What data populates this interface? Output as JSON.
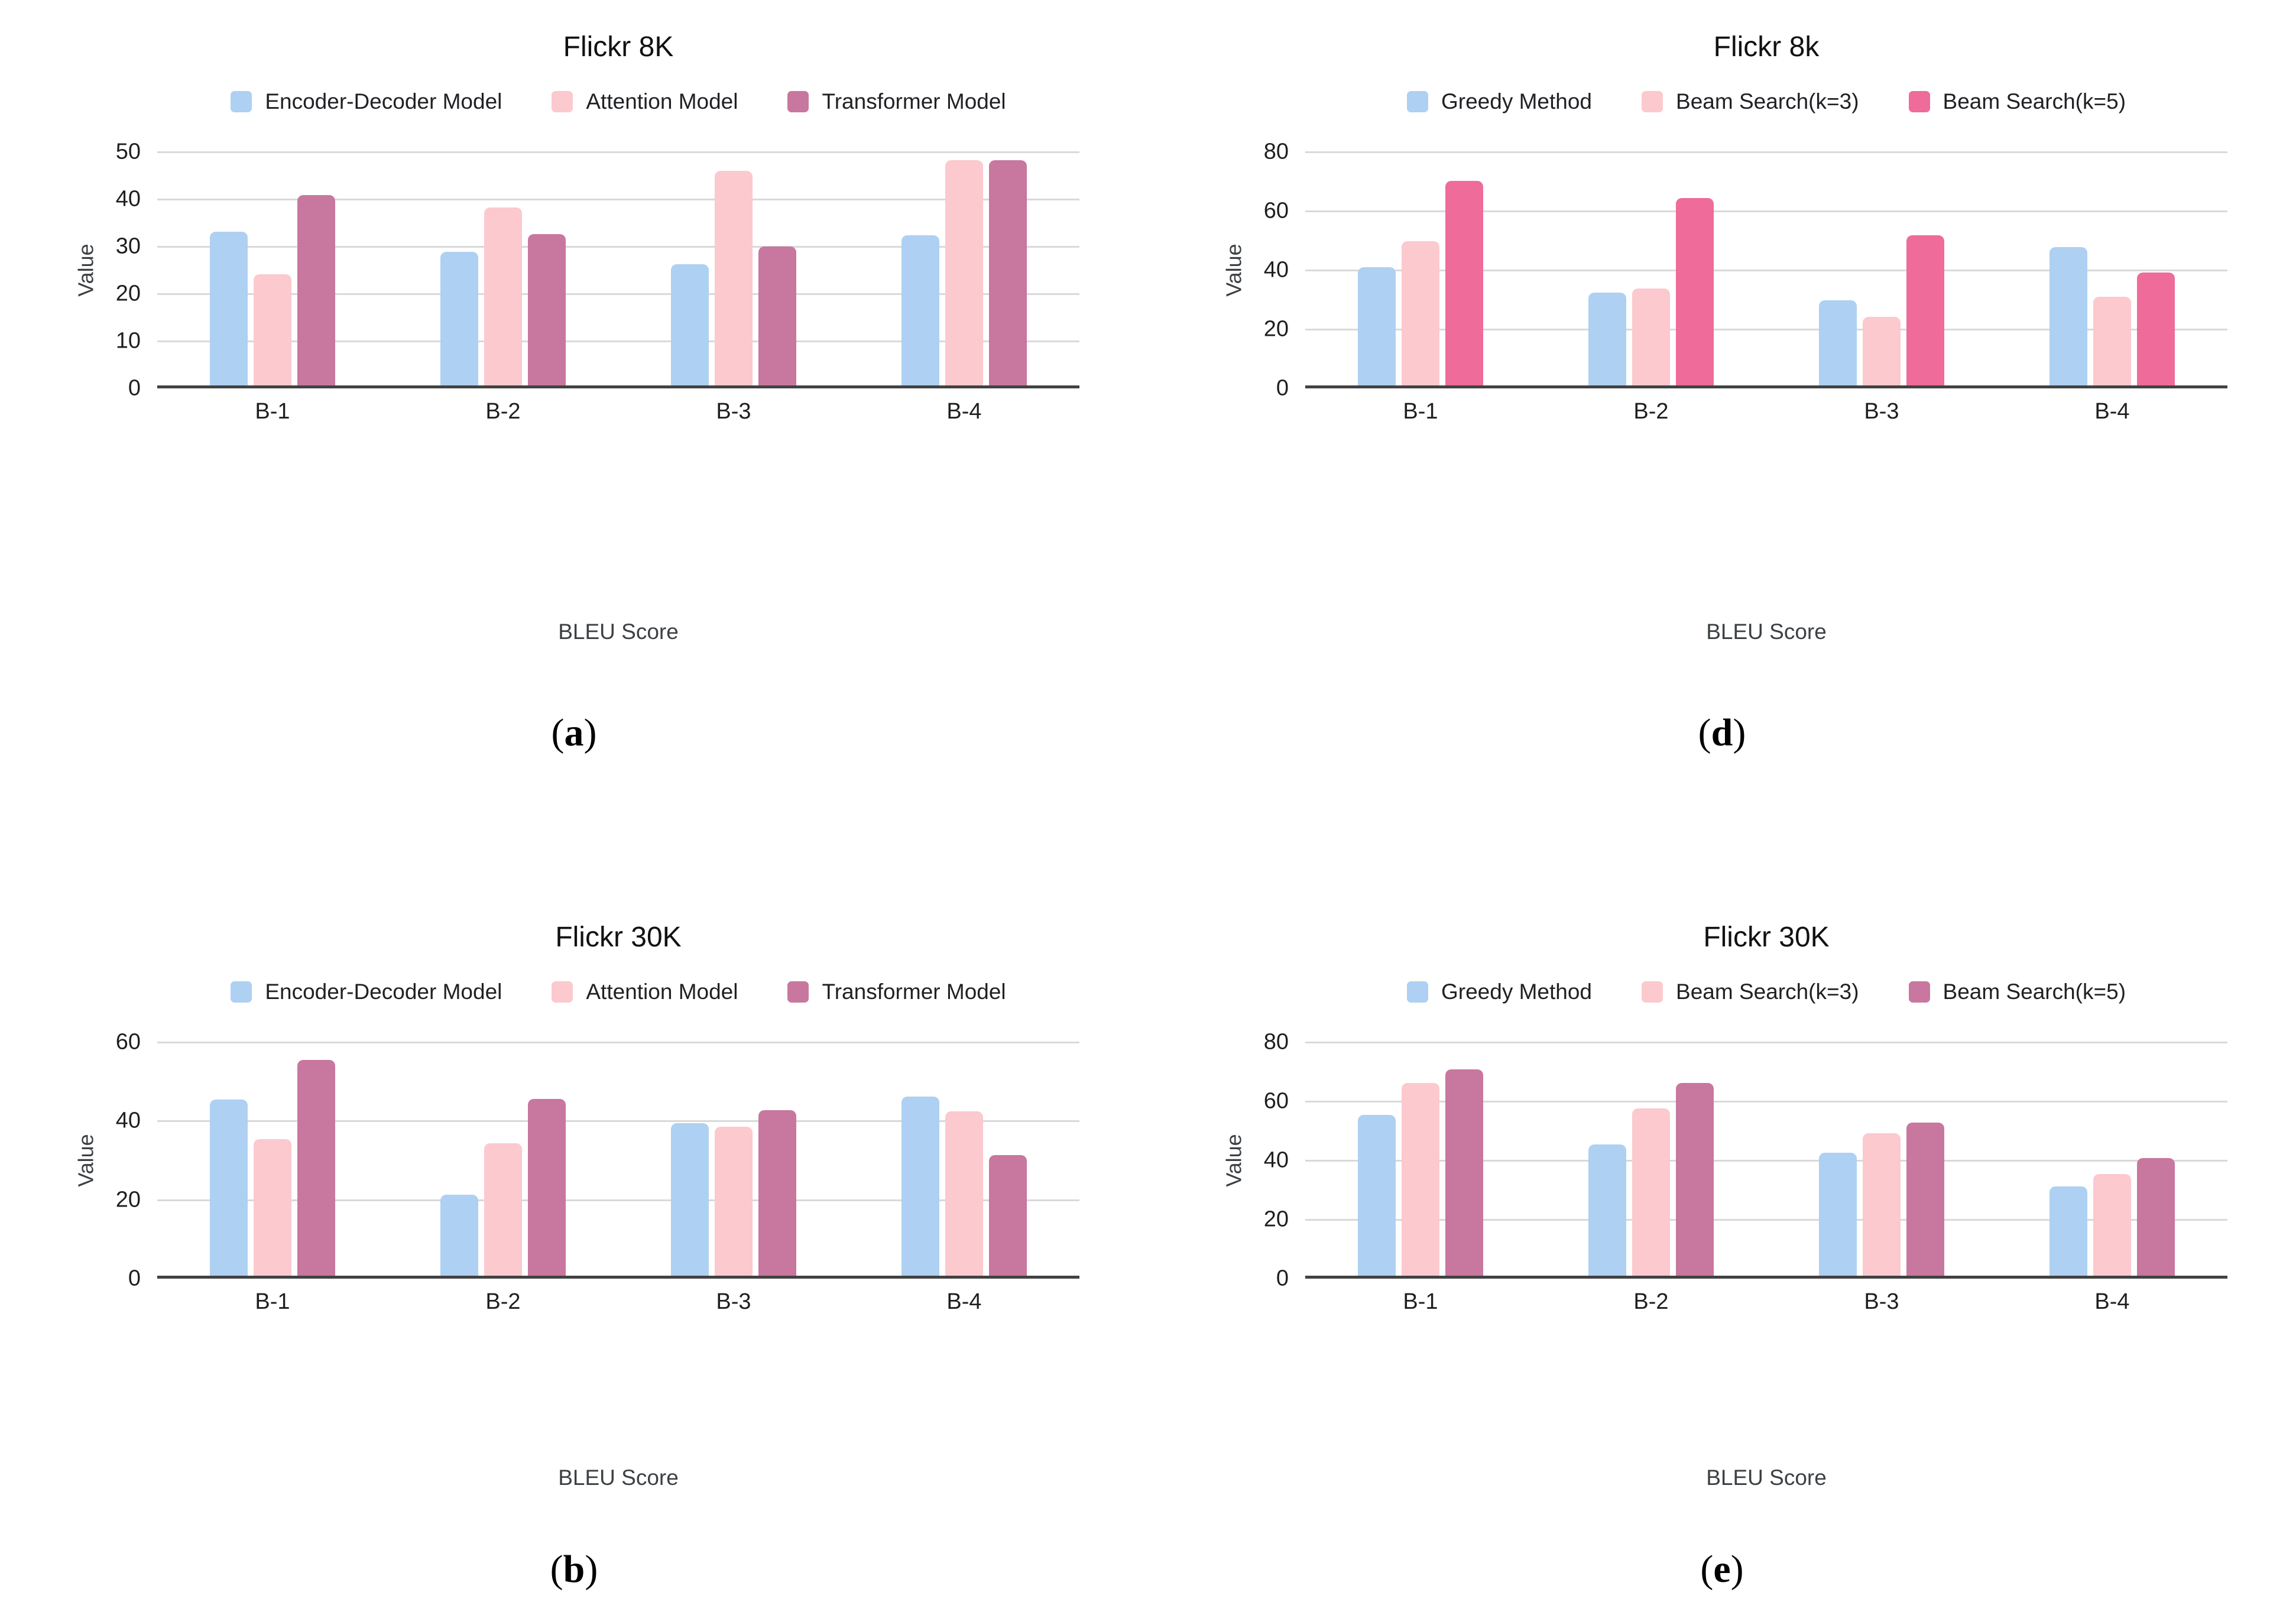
{
  "page": {
    "background": "#ffffff"
  },
  "chart_data": [
    {
      "type": "bar",
      "panel": "a",
      "caption": "(a)",
      "title": "Flickr 8K",
      "xlabel": "BLEU Score",
      "ylabel": "Value",
      "categories": [
        "B-1",
        "B-2",
        "B-3",
        "B-4"
      ],
      "y_ticks": [
        0,
        10,
        20,
        30,
        40,
        50
      ],
      "ylim": [
        0,
        50
      ],
      "grid": true,
      "legend_position": "top",
      "series": [
        {
          "name": "Encoder-Decoder Model",
          "color": "#aed0f2",
          "values": [
            33.1,
            28.9,
            26.3,
            32.4
          ]
        },
        {
          "name": "Attention Model",
          "color": "#fbc9ce",
          "values": [
            24.1,
            38.3,
            46.0,
            48.3
          ]
        },
        {
          "name": "Transformer Model",
          "color": "#c8779e",
          "values": [
            40.9,
            32.6,
            30.0,
            48.2
          ]
        }
      ]
    },
    {
      "type": "bar",
      "panel": "d",
      "caption": "(d)",
      "title": "Flickr 8k",
      "xlabel": "BLEU Score",
      "ylabel": "Value",
      "categories": [
        "B-1",
        "B-2",
        "B-3",
        "B-4"
      ],
      "y_ticks": [
        0,
        20,
        40,
        60,
        80
      ],
      "ylim": [
        0,
        80
      ],
      "grid": true,
      "legend_position": "top",
      "series": [
        {
          "name": "Greedy Method",
          "color": "#aed0f2",
          "values": [
            41.0,
            32.4,
            29.8,
            47.9
          ]
        },
        {
          "name": "Beam Search(k=3)",
          "color": "#fbc9ce",
          "values": [
            49.8,
            33.8,
            24.3,
            31.1
          ]
        },
        {
          "name": "Beam Search(k=5)",
          "color": "#ee6b9a",
          "values": [
            70.3,
            64.4,
            51.8,
            39.2
          ]
        }
      ]
    },
    {
      "type": "bar",
      "panel": "b",
      "caption": "(b)",
      "title": "Flickr 30K",
      "xlabel": "BLEU Score",
      "ylabel": "Value",
      "categories": [
        "B-1",
        "B-2",
        "B-3",
        "B-4"
      ],
      "y_ticks": [
        0,
        20,
        40,
        60
      ],
      "ylim": [
        0,
        60
      ],
      "grid": true,
      "legend_position": "top",
      "series": [
        {
          "name": "Encoder-Decoder Model",
          "color": "#aed0f2",
          "values": [
            45.4,
            21.3,
            39.4,
            46.2
          ]
        },
        {
          "name": "Attention Model",
          "color": "#fbc9ce",
          "values": [
            35.4,
            34.3,
            38.5,
            42.5
          ]
        },
        {
          "name": "Transformer Model",
          "color": "#c8779e",
          "values": [
            55.5,
            45.6,
            42.8,
            31.4
          ]
        }
      ]
    },
    {
      "type": "bar",
      "panel": "e",
      "caption": "(e)",
      "title": "Flickr 30K",
      "xlabel": "BLEU Score",
      "ylabel": "Value",
      "categories": [
        "B-1",
        "B-2",
        "B-3",
        "B-4"
      ],
      "y_ticks": [
        0,
        20,
        40,
        60,
        80
      ],
      "ylim": [
        0,
        80
      ],
      "grid": true,
      "legend_position": "top",
      "series": [
        {
          "name": "Greedy Method",
          "color": "#aed0f2",
          "values": [
            55.5,
            45.5,
            42.6,
            31.3
          ]
        },
        {
          "name": "Beam Search(k=3)",
          "color": "#fbc9ce",
          "values": [
            66.3,
            57.7,
            49.3,
            35.4
          ]
        },
        {
          "name": "Beam Search(k=5)",
          "color": "#c8779e",
          "values": [
            70.8,
            66.3,
            52.9,
            40.8
          ]
        }
      ]
    }
  ]
}
